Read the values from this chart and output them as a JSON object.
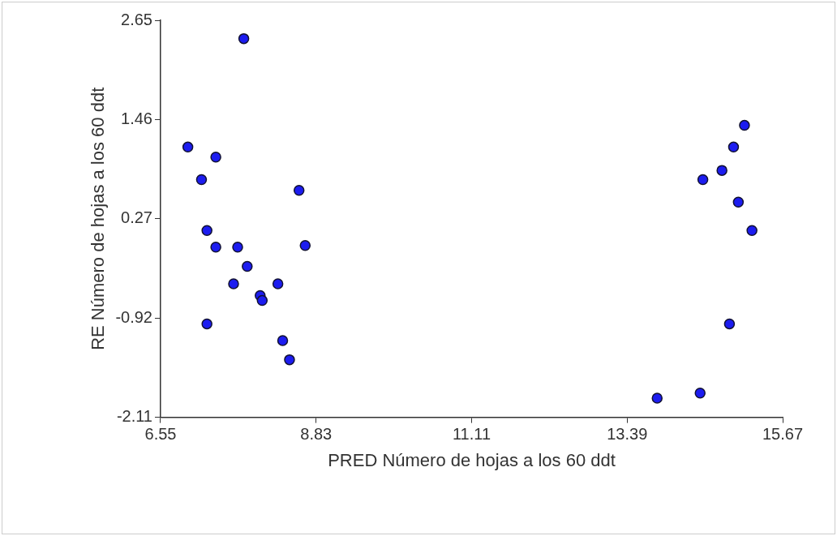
{
  "chart_data": {
    "type": "scatter",
    "xlabel": "PRED Número de hojas a los 60 ddt",
    "ylabel": "RE Número de hojas a los 60 ddt",
    "xlim": [
      6.55,
      15.67
    ],
    "xticks": [
      6.55,
      8.83,
      11.11,
      13.39,
      15.67
    ],
    "ylim": [
      -2.11,
      2.65
    ],
    "yticks": [
      -2.11,
      -0.92,
      0.27,
      1.46,
      2.65
    ],
    "grid": false,
    "legend": false,
    "marker": "circle",
    "series": [
      {
        "color": "#1c1cf0",
        "x": [
          7.77,
          6.95,
          7.36,
          7.15,
          8.58,
          7.23,
          7.36,
          7.68,
          8.67,
          7.82,
          7.62,
          8.27,
          8.01,
          8.04,
          7.23,
          8.34,
          8.44,
          15.11,
          14.95,
          14.78,
          14.5,
          15.02,
          15.22,
          14.89,
          14.46,
          13.83
        ],
        "values": [
          2.43,
          1.13,
          1.01,
          0.74,
          0.61,
          0.13,
          -0.07,
          -0.07,
          -0.05,
          -0.3,
          -0.51,
          -0.51,
          -0.65,
          -0.71,
          -0.99,
          -1.19,
          -1.42,
          1.39,
          1.13,
          0.85,
          0.74,
          0.47,
          0.13,
          -0.99,
          -1.82,
          -1.88
        ]
      }
    ]
  }
}
